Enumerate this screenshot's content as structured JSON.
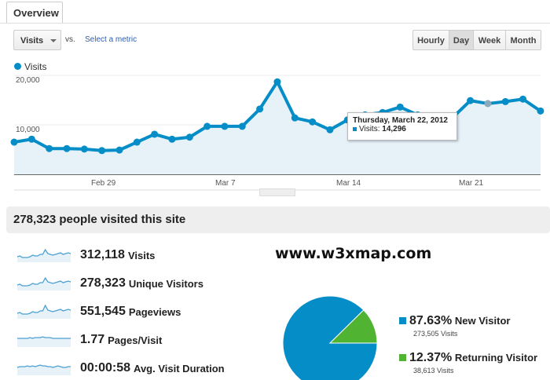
{
  "tabs": {
    "overview": "Overview"
  },
  "toolbar": {
    "metric_select": "Visits",
    "vs": "vs.",
    "select_metric": "Select a metric",
    "granularity": [
      {
        "label": "Hourly",
        "active": false
      },
      {
        "label": "Day",
        "active": true
      },
      {
        "label": "Week",
        "active": false
      },
      {
        "label": "Month",
        "active": false
      }
    ]
  },
  "colors": {
    "accent": "#058dc7",
    "returning": "#50b432",
    "fill": "#e6f2f8"
  },
  "chart_data": {
    "type": "area",
    "legend": "Visits",
    "x": [
      "Feb 24",
      "Feb 25",
      "Feb 26",
      "Feb 27",
      "Feb 28",
      "Feb 29",
      "Mar 1",
      "Mar 2",
      "Mar 3",
      "Mar 4",
      "Mar 5",
      "Mar 6",
      "Mar 7",
      "Mar 8",
      "Mar 9",
      "Mar 10",
      "Mar 11",
      "Mar 12",
      "Mar 13",
      "Mar 14",
      "Mar 15",
      "Mar 16",
      "Mar 17",
      "Mar 18",
      "Mar 19",
      "Mar 20",
      "Mar 21",
      "Mar 22",
      "Mar 23",
      "Mar 24",
      "Mar 25"
    ],
    "values": [
      6500,
      7100,
      5200,
      5200,
      5100,
      4800,
      4900,
      6500,
      8100,
      7100,
      7500,
      9700,
      9700,
      9700,
      13200,
      18700,
      11400,
      10600,
      9000,
      11000,
      12000,
      12500,
      13600,
      12000,
      11000,
      11500,
      14900,
      14296,
      14700,
      15200,
      12800
    ],
    "y_ticks": [
      "20,000",
      "10,000"
    ],
    "ylim": [
      0,
      20000
    ],
    "x_ticks": [
      "Feb 29",
      "Mar 7",
      "Mar 14",
      "Mar 21"
    ],
    "grid": true,
    "tooltip": {
      "title": "Thursday, March 22, 2012",
      "label": "Visits:",
      "value": "14,296"
    }
  },
  "summary": {
    "headline": "278,323 people visited this site",
    "metrics": [
      {
        "value": "312,118",
        "label": "Visits",
        "spark": [
          5,
          6,
          4,
          4,
          4,
          5,
          7,
          6,
          6,
          8,
          8,
          14,
          9,
          8,
          7,
          8,
          9,
          10,
          8,
          9,
          10,
          9
        ]
      },
      {
        "value": "278,323",
        "label": "Unique Visitors",
        "spark": [
          5,
          6,
          4,
          4,
          4,
          5,
          7,
          6,
          6,
          8,
          8,
          14,
          9,
          8,
          7,
          8,
          9,
          10,
          8,
          9,
          10,
          9
        ]
      },
      {
        "value": "551,545",
        "label": "Pageviews",
        "spark": [
          5,
          6,
          4,
          4,
          4,
          5,
          7,
          6,
          6,
          8,
          8,
          15,
          9,
          8,
          7,
          8,
          9,
          10,
          8,
          9,
          10,
          9
        ]
      },
      {
        "value": "1.77",
        "label": "Pages/Visit",
        "spark": [
          9,
          9,
          9,
          9,
          9,
          10,
          9,
          10,
          10,
          10,
          11,
          10,
          10,
          10,
          9,
          9,
          9,
          9,
          9,
          9,
          9,
          9
        ]
      },
      {
        "value": "00:00:58",
        "label": "Avg. Visit Duration",
        "spark": [
          8,
          9,
          9,
          9,
          10,
          9,
          10,
          9,
          10,
          11,
          10,
          10,
          9,
          9,
          8,
          9,
          10,
          9,
          8,
          8,
          9,
          9
        ]
      }
    ]
  },
  "watermark": "www.w3xmap.com",
  "pie": {
    "slices": [
      {
        "pct": "87.63%",
        "label": "New Visitor",
        "visits": "273,505 Visits",
        "value": 87.63
      },
      {
        "pct": "12.37%",
        "label": "Returning Visitor",
        "visits": "38,613 Visits",
        "value": 12.37
      }
    ]
  }
}
